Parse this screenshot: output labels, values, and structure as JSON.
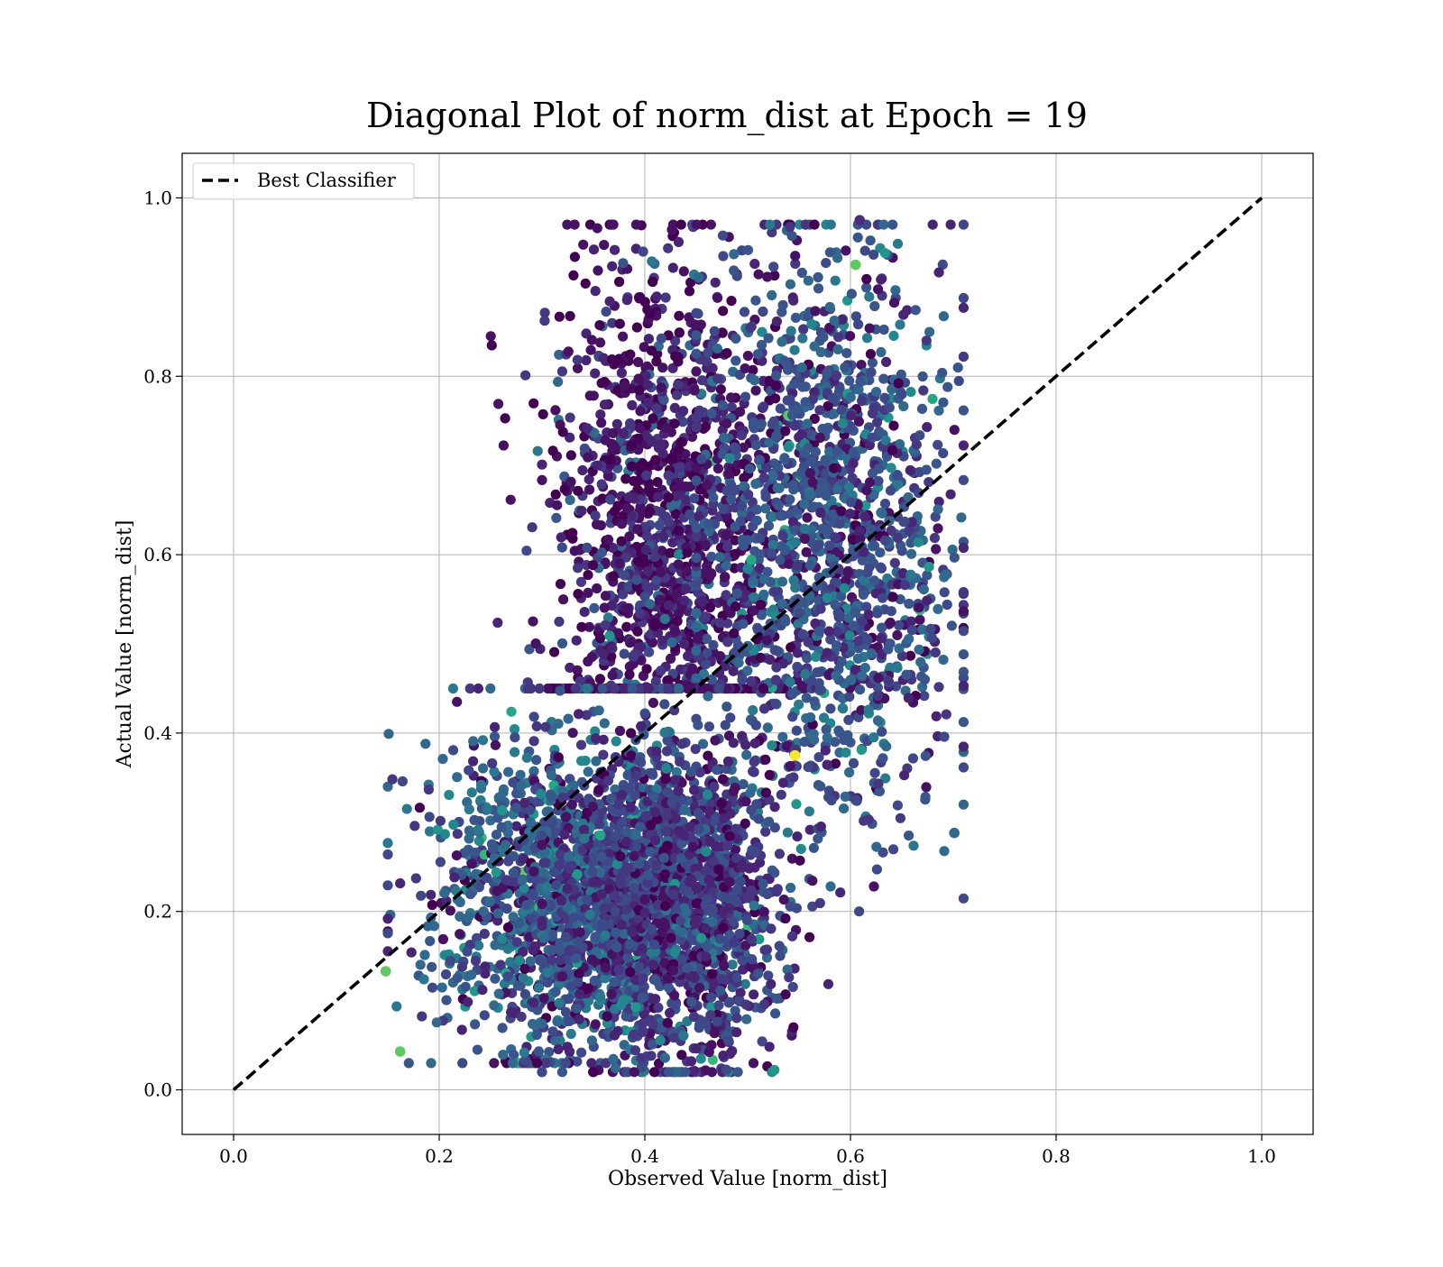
{
  "chart_data": {
    "type": "scatter",
    "title": "Diagonal Plot of norm_dist at Epoch = 19",
    "xlabel": "Observed Value [norm_dist]",
    "ylabel": "Actual Value [norm_dist]",
    "xlim": [
      -0.05,
      1.05
    ],
    "ylim": [
      -0.05,
      1.05
    ],
    "xticks": [
      "0.0",
      "0.2",
      "0.4",
      "0.6",
      "0.8",
      "1.0"
    ],
    "yticks": [
      "0.0",
      "0.2",
      "0.4",
      "0.6",
      "0.8",
      "1.0"
    ],
    "grid": true,
    "legend": {
      "placement": "upper-left",
      "entries": [
        "Best Classifier"
      ]
    },
    "reference_line": {
      "name": "Best Classifier",
      "style": "dashed",
      "color": "#000000",
      "x": [
        0,
        1
      ],
      "y": [
        0,
        1
      ]
    },
    "colormap": "viridis",
    "point_cloud": {
      "approx_count": 15000,
      "clusters": [
        {
          "x_center": 0.42,
          "y_center": 0.62,
          "x_spread": 0.055,
          "y_spread": 0.16,
          "x_range": [
            0.23,
            0.72
          ],
          "y_range": [
            0.45,
            0.97
          ],
          "dominant_color": "#440154"
        },
        {
          "x_center": 0.58,
          "y_center": 0.62,
          "x_spread": 0.06,
          "y_spread": 0.16,
          "x_range": [
            0.45,
            0.71
          ],
          "y_range": [
            0.2,
            0.97
          ],
          "dominant_color": "#31688e"
        },
        {
          "x_center": 0.33,
          "y_center": 0.22,
          "x_spread": 0.065,
          "y_spread": 0.09,
          "x_range": [
            0.15,
            0.55
          ],
          "y_range": [
            0.03,
            0.45
          ],
          "dominant_color": "#2a788e"
        },
        {
          "x_center": 0.43,
          "y_center": 0.2,
          "x_spread": 0.05,
          "y_spread": 0.09,
          "x_range": [
            0.3,
            0.6
          ],
          "y_range": [
            0.02,
            0.45
          ],
          "dominant_color": "#3b528b"
        }
      ],
      "notable_points": [
        {
          "x": 0.546,
          "y": 0.375,
          "color": "#fde725"
        },
        {
          "x": 0.605,
          "y": 0.925,
          "color": "#5ec962"
        },
        {
          "x": 0.148,
          "y": 0.133,
          "color": "#5ec962"
        },
        {
          "x": 0.162,
          "y": 0.043,
          "color": "#5ec962"
        },
        {
          "x": 0.609,
          "y": 0.975,
          "color": "#472d7b"
        },
        {
          "x": 0.701,
          "y": 0.288,
          "color": "#31688e"
        }
      ]
    }
  }
}
